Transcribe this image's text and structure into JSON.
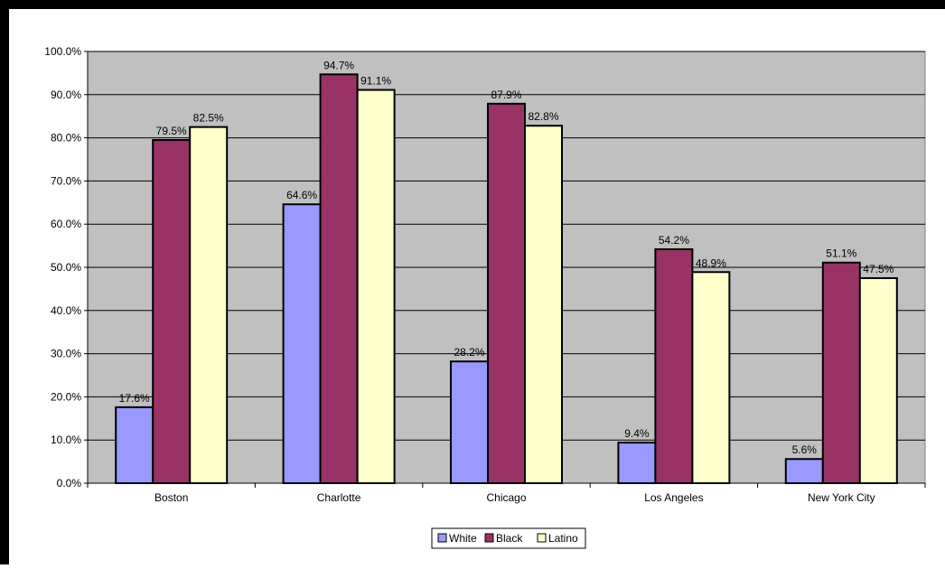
{
  "colors": {
    "plot_background": "#c0c0c0",
    "gridline": "#000000",
    "series": [
      "#9999ff",
      "#993366",
      "#ffffcc"
    ],
    "bar_stroke": "#000000"
  },
  "chart_data": {
    "type": "bar",
    "categories": [
      "Boston",
      "Charlotte",
      "Chicago",
      "Los Angeles",
      "New York City"
    ],
    "series": [
      {
        "name": "White",
        "values": [
          17.6,
          64.6,
          28.2,
          9.4,
          5.6
        ]
      },
      {
        "name": "Black",
        "values": [
          79.5,
          94.7,
          87.9,
          54.2,
          51.1
        ]
      },
      {
        "name": "Latino",
        "values": [
          82.5,
          91.1,
          82.8,
          48.9,
          47.5
        ]
      }
    ],
    "data_label_format": "0.0%",
    "data_labels": [
      [
        "17.6%",
        "64.6%",
        "28.2%",
        "9.4%",
        "5.6%"
      ],
      [
        "79.5%",
        "94.7%",
        "87.9%",
        "54.2%",
        "51.1%"
      ],
      [
        "82.5%",
        "91.1%",
        "82.8%",
        "48.9%",
        "47.5%"
      ]
    ],
    "y_ticks": [
      "0.0%",
      "10.0%",
      "20.0%",
      "30.0%",
      "40.0%",
      "50.0%",
      "60.0%",
      "70.0%",
      "80.0%",
      "90.0%",
      "100.0%"
    ],
    "ylim": [
      0,
      100
    ],
    "ytick_step": 10,
    "grid": true,
    "legend_position": "bottom",
    "title": "",
    "xlabel": "",
    "ylabel": ""
  }
}
